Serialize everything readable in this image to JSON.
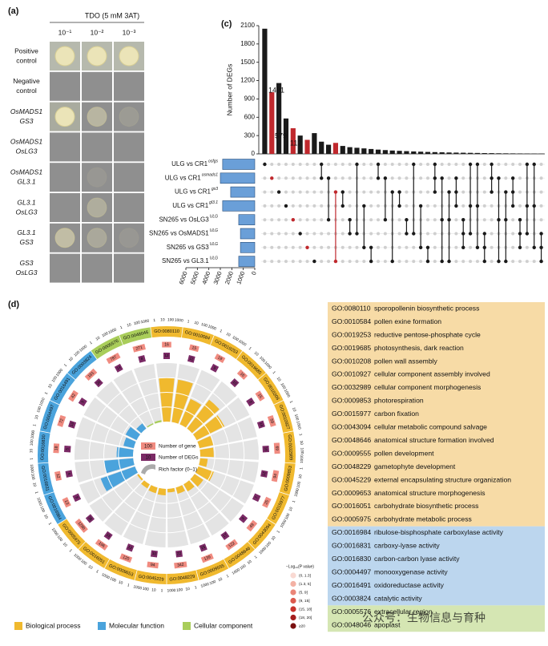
{
  "panel_a": {
    "label": "(a)",
    "title": "TDO (5 mM 3AT)",
    "dilutions": [
      "10⁻¹",
      "10⁻²",
      "10⁻³"
    ],
    "rows": [
      {
        "lines": [
          "Positive",
          "control"
        ],
        "italic": false
      },
      {
        "lines": [
          "Negative",
          "control"
        ],
        "italic": false
      },
      {
        "lines": [
          "OsMADS1",
          "GS3"
        ],
        "italic": true
      },
      {
        "lines": [
          "OsMADS1",
          "OsLG3"
        ],
        "italic": true
      },
      {
        "lines": [
          "OsMADS1",
          "GL3.1"
        ],
        "italic": true
      },
      {
        "lines": [
          "GL3.1",
          "OsLG3"
        ],
        "italic": true
      },
      {
        "lines": [
          "GL3.1",
          "GS3"
        ],
        "italic": true
      },
      {
        "lines": [
          "GS3",
          "OsLG3"
        ],
        "italic": true
      }
    ]
  },
  "chart_data": [
    {
      "type": "bar",
      "label": "(c)",
      "y_label": "Number of DEGs",
      "values": [
        2050,
        1010,
        1160,
        580,
        420,
        300,
        230,
        340,
        200,
        150,
        180,
        130,
        110,
        100,
        90,
        80,
        70,
        62,
        55,
        50,
        45,
        40,
        36,
        32,
        29,
        26,
        23,
        21,
        19,
        17,
        15,
        13,
        12,
        10,
        9,
        8,
        7,
        6,
        5,
        4
      ],
      "colors": [
        "#1a1a1a",
        "#c0282d",
        "#1a1a1a",
        "#1a1a1a",
        "#c0282d",
        "#1a1a1a",
        "#c0282d",
        "#1a1a1a",
        "#1a1a1a",
        "#1a1a1a",
        "#c0282d",
        "#1a1a1a",
        "#1a1a1a",
        "#1a1a1a",
        "#1a1a1a",
        "#1a1a1a",
        "#1a1a1a",
        "#1a1a1a",
        "#1a1a1a",
        "#1a1a1a",
        "#1a1a1a",
        "#1a1a1a",
        "#1a1a1a",
        "#1a1a1a",
        "#1a1a1a",
        "#1a1a1a",
        "#1a1a1a",
        "#1a1a1a",
        "#1a1a1a",
        "#1a1a1a",
        "#1a1a1a",
        "#1a1a1a",
        "#1a1a1a",
        "#1a1a1a",
        "#1a1a1a",
        "#1a1a1a",
        "#1a1a1a",
        "#1a1a1a",
        "#1a1a1a",
        "#1a1a1a"
      ],
      "ylim": [
        0,
        2100
      ],
      "yticks": [
        0,
        300,
        600,
        900,
        1200,
        1500,
        1800,
        2100
      ],
      "annotations": [
        "1491",
        "579",
        "112"
      ]
    },
    {
      "type": "hbar",
      "categories": [
        "ULG vs CR1",
        "ULG vs CR1",
        "ULG vs CR1",
        "ULG vs CR1",
        "SN265 vs OsLG3",
        "SN265 vs OsMADS1",
        "SN265 vs GS3",
        "SN265 vs GL3.1"
      ],
      "superscripts": [
        "osfgs",
        "osmads1",
        "gs3",
        "gl3.1",
        "ULG",
        "ULG",
        "ULG",
        "ULG"
      ],
      "values": [
        2800,
        3000,
        2100,
        2800,
        1400,
        1250,
        1250,
        1400
      ],
      "color": "#6a9fd8",
      "xlim": [
        6000,
        0
      ],
      "xticks": [
        6000,
        5000,
        4000,
        3000,
        2000,
        1000,
        0
      ]
    }
  ],
  "panel_d": {
    "label": "(d)",
    "ring_ticks": [
      1,
      10,
      100,
      1000
    ],
    "center_legend": {
      "gene_sample": "100",
      "gene_label": "Number of gene",
      "deg_sample": "10",
      "deg_label": "Number of DEGs",
      "rich_label": "Rich factor (0–1)"
    },
    "groups": [
      {
        "name": "Biological process",
        "color": "#f0b92e",
        "bg": "#f7dba6",
        "terms": [
          {
            "id": "GO:0080110",
            "desc": "sporopollenin biosynthetic process",
            "genes": 16,
            "degs": 12,
            "rich": 0.75
          },
          {
            "id": "GO:0010584",
            "desc": "pollen exine formation",
            "genes": 15,
            "degs": 11,
            "rich": 0.73
          },
          {
            "id": "GO:0019253",
            "desc": "reductive pentose-phosphate cycle",
            "genes": 19,
            "degs": 9,
            "rich": 0.47
          },
          {
            "id": "GO:0019685",
            "desc": "photosynthesis, dark reaction",
            "genes": 16,
            "degs": 10,
            "rich": 0.62
          },
          {
            "id": "GO:0010208",
            "desc": "pollen wall assembly",
            "genes": 15,
            "degs": 8,
            "rich": 0.53
          },
          {
            "id": "GO:0010927",
            "desc": "cellular component assembly involved",
            "genes": 59,
            "degs": 14,
            "rich": 0.24
          },
          {
            "id": "GO:0032989",
            "desc": "cellular component morphogenesis",
            "genes": 69,
            "degs": 16,
            "rich": 0.23
          },
          {
            "id": "GO:0009853",
            "desc": "photorespiration",
            "genes": 94,
            "degs": 12,
            "rich": 0.13
          },
          {
            "id": "GO:0015977",
            "desc": "carbon fixation",
            "genes": 25,
            "degs": 7,
            "rich": 0.28
          },
          {
            "id": "GO:0043094",
            "desc": "cellular metabolic compound salvage",
            "genes": 49,
            "degs": 9,
            "rich": 0.18
          },
          {
            "id": "GO:0048646",
            "desc": "anatomical structure formation involved",
            "genes": 122,
            "degs": 17,
            "rich": 0.14
          },
          {
            "id": "GO:0009555",
            "desc": "pollen development",
            "genes": 139,
            "degs": 15,
            "rich": 0.11
          },
          {
            "id": "GO:0048229",
            "desc": "gametophyte development",
            "genes": 342,
            "degs": 22,
            "rich": 0.06
          },
          {
            "id": "GO:0045229",
            "desc": "external encapsulating structure organization",
            "genes": 94,
            "degs": 10,
            "rich": 0.11
          },
          {
            "id": "GO:0009653",
            "desc": "anatomical structure morphogenesis",
            "genes": 120,
            "degs": 12,
            "rich": 0.1
          },
          {
            "id": "GO:0016051",
            "desc": "carbohydrate biosynthetic process",
            "genes": 196,
            "degs": 15,
            "rich": 0.08
          },
          {
            "id": "GO:0005975",
            "desc": "carbohydrate metabolic process",
            "genes": 1290,
            "degs": 38,
            "rich": 0.03
          }
        ]
      },
      {
        "name": "Molecular function",
        "color": "#4aa3dc",
        "bg": "#bcd6ee",
        "terms": [
          {
            "id": "GO:0016984",
            "desc": "ribulose-bisphosphate carboxylase activity",
            "genes": 13,
            "degs": 8,
            "rich": 0.62
          },
          {
            "id": "GO:0016831",
            "desc": "carboxy-lyase activity",
            "genes": 12,
            "degs": 6,
            "rich": 0.5
          },
          {
            "id": "GO:0016830",
            "desc": "carbon-carbon lyase activity",
            "genes": 18,
            "degs": 5,
            "rich": 0.28
          },
          {
            "id": "GO:0004497",
            "desc": "monooxygenase activity",
            "genes": 72,
            "degs": 13,
            "rich": 0.18
          },
          {
            "id": "GO:0016491",
            "desc": "oxidoreductase activity",
            "genes": 42,
            "degs": 9,
            "rich": 0.21
          },
          {
            "id": "GO:0003824",
            "desc": "catalytic activity",
            "genes": 181,
            "degs": 20,
            "rich": 0.11
          }
        ]
      },
      {
        "name": "Cellular component",
        "color": "#a9cd5a",
        "bg": "#d5e6b3",
        "terms": [
          {
            "id": "GO:0005576",
            "desc": "extracellular region",
            "genes": 787,
            "degs": 14,
            "rich": 0.02
          },
          {
            "id": "GO:0048046",
            "desc": "apoplast",
            "genes": 271,
            "degs": 8,
            "rich": 0.03
          }
        ]
      }
    ],
    "pvalue_legend": {
      "title": "−Log₁₀(P value)",
      "bins": [
        {
          "label": "(0, 1.3]",
          "color": "#f9d9d2"
        },
        {
          "label": "(1.3, 5]",
          "color": "#f3b1a4"
        },
        {
          "label": "(5, 9]",
          "color": "#ea8577"
        },
        {
          "label": "(9, 15]",
          "color": "#dc5a4e"
        },
        {
          "label": "(15, 18]",
          "color": "#c8332c"
        },
        {
          "label": "(18, 20]",
          "color": "#a51d1d"
        },
        {
          "label": "≥20",
          "color": "#7a1010"
        }
      ]
    },
    "watermark": "公众号：生物信息与育种"
  }
}
